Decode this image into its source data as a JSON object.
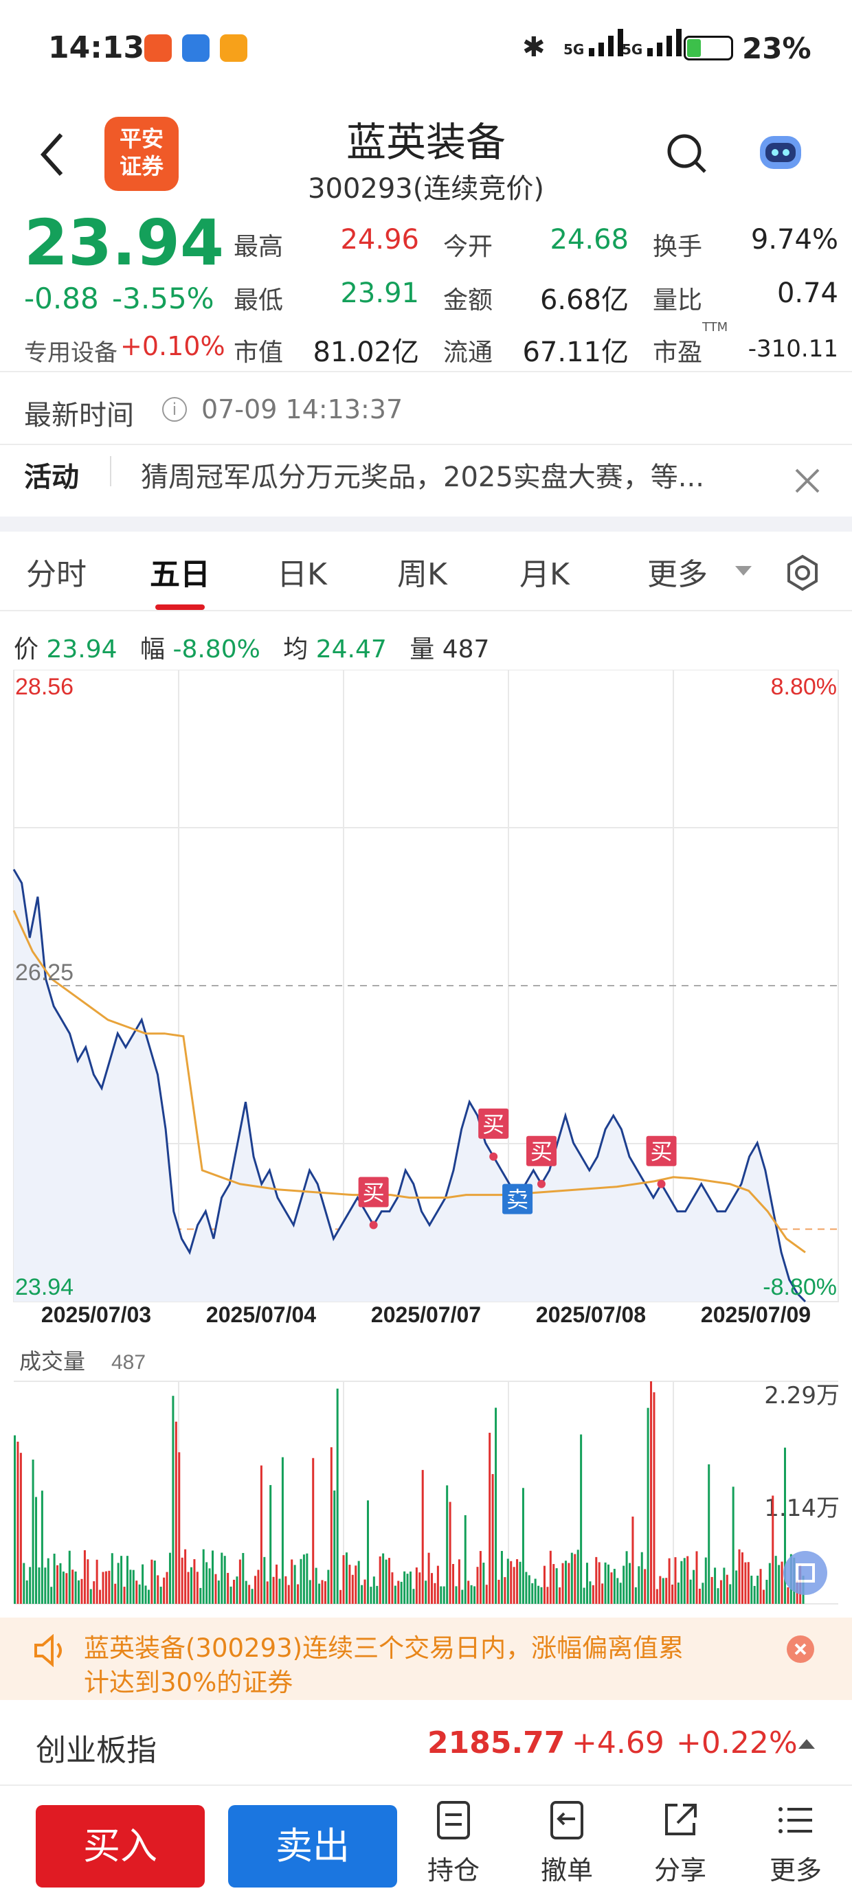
{
  "status_bar": {
    "time": "14:13",
    "signal_1": "5G",
    "signal_2": "5G",
    "battery": "23%",
    "app_icons": [
      "pingan-app-icon",
      "chart-app-icon",
      "orange-app-icon"
    ]
  },
  "header": {
    "logo_text_1": "平安",
    "logo_text_2": "证券",
    "stock_name": "蓝英装备",
    "stock_code": "300293(连续竞价)"
  },
  "quote": {
    "price": "23.94",
    "change": "-0.88",
    "change_pct": "-3.55%",
    "sector": "专用设备",
    "sector_change": "+0.10%",
    "fields": [
      {
        "label": "最高",
        "value": "24.96",
        "tone": "red"
      },
      {
        "label": "今开",
        "value": "24.68",
        "tone": "green"
      },
      {
        "label": "换手",
        "value": "9.74%",
        "tone": "dark"
      },
      {
        "label": "最低",
        "value": "23.91",
        "tone": "green"
      },
      {
        "label": "金额",
        "value": "6.68亿",
        "tone": "dark"
      },
      {
        "label": "量比",
        "value": "0.74",
        "tone": "dark"
      },
      {
        "label": "市值",
        "value": "81.02亿",
        "tone": "dark"
      },
      {
        "label": "流通",
        "value": "67.11亿",
        "tone": "dark"
      },
      {
        "label": "市盈",
        "value": "-310.11",
        "tone": "dark"
      }
    ],
    "ttm": "TTM"
  },
  "latest_time": {
    "label": "最新时间",
    "value": "07-09 14:13:37"
  },
  "activity": {
    "label": "活动",
    "text": "猜周冠军瓜分万元奖品，2025实盘大赛，等..."
  },
  "tabs": {
    "items": [
      "分时",
      "五日",
      "日K",
      "周K",
      "月K",
      "更多"
    ],
    "active": "五日"
  },
  "chart_info": {
    "price_label": "价",
    "price": "23.94",
    "range_label": "幅",
    "range": "-8.80%",
    "avg_label": "均",
    "avg": "24.47",
    "vol_label": "量",
    "vol": "487"
  },
  "chart_data": [
    {
      "type": "line",
      "title": "",
      "days": [
        "2025/07/03",
        "2025/07/04",
        "2025/07/07",
        "2025/07/08",
        "2025/07/09"
      ],
      "y_labels": {
        "top": "28.56",
        "mid": "26.25",
        "bottom": "23.94",
        "top_pct": "8.80%",
        "bottom_pct": "-8.80%"
      },
      "ylim": [
        23.94,
        28.56
      ],
      "prev_close": 26.25,
      "series": [
        {
          "name": "",
          "color": "#1d3f8f",
          "values": [
            27.1,
            27.0,
            26.6,
            26.9,
            26.3,
            26.1,
            26.0,
            25.9,
            25.7,
            25.8,
            25.6,
            25.5,
            25.7,
            25.9,
            25.8,
            25.9,
            26.0,
            25.8,
            25.6,
            25.2,
            24.6,
            24.4,
            24.3,
            24.5,
            24.6,
            24.4,
            24.7,
            24.8,
            25.1,
            25.4,
            25.0,
            24.8,
            24.9,
            24.7,
            24.6,
            24.5,
            24.7,
            24.9,
            24.8,
            24.6,
            24.4,
            24.5,
            24.6,
            24.7,
            24.6,
            24.5,
            24.6,
            24.6,
            24.7,
            24.9,
            24.8,
            24.6,
            24.5,
            24.6,
            24.7,
            24.9,
            25.2,
            25.4,
            25.3,
            25.1,
            25.0,
            24.9,
            24.8,
            24.7,
            24.8,
            24.9,
            24.8,
            24.9,
            25.1,
            25.3,
            25.1,
            25.0,
            24.9,
            25.0,
            25.2,
            25.3,
            25.2,
            25.0,
            24.9,
            24.8,
            24.7,
            24.8,
            24.7,
            24.6,
            24.6,
            24.7,
            24.8,
            24.7,
            24.6,
            24.6,
            24.7,
            24.8,
            25.0,
            25.1,
            24.9,
            24.6,
            24.3,
            24.1,
            24.0,
            23.94
          ]
        },
        {
          "name": "",
          "color": "#e8a33a",
          "values": [
            26.8,
            26.5,
            26.3,
            26.2,
            26.1,
            26.0,
            25.95,
            25.9,
            25.9,
            25.88,
            24.9,
            24.85,
            24.8,
            24.78,
            24.76,
            24.75,
            24.74,
            24.73,
            24.72,
            24.72,
            24.72,
            24.7,
            24.7,
            24.7,
            24.72,
            24.72,
            24.72,
            24.73,
            24.74,
            24.75,
            24.76,
            24.77,
            24.78,
            24.8,
            24.82,
            24.85,
            24.84,
            24.82,
            24.8,
            24.75,
            24.6,
            24.4,
            24.3
          ]
        }
      ],
      "markers": [
        {
          "text": "买",
          "type": "buy"
        },
        {
          "text": "买",
          "type": "buy"
        },
        {
          "text": "卖",
          "type": "sell"
        },
        {
          "text": "买",
          "type": "buy"
        },
        {
          "text": "买",
          "type": "buy"
        }
      ]
    },
    {
      "type": "bar",
      "title": "成交量",
      "value_label": "487",
      "y_labels": [
        "2.29万",
        "1.14万"
      ],
      "ylim": [
        0,
        22900
      ],
      "colors": {
        "up": "#e0312f",
        "down": "#14a05a"
      }
    }
  ],
  "alert": {
    "text_line1": "蓝英装备(300293)连续三个交易日内，涨幅偏离值累",
    "text_line2": "计达到30%的证券"
  },
  "index": {
    "name": "创业板指",
    "value": "2185.77",
    "change": "+4.69",
    "change_pct": "+0.22%"
  },
  "bottom_bar": {
    "buy": "买入",
    "sell": "卖出",
    "tools": [
      "持仓",
      "撤单",
      "分享",
      "更多"
    ]
  },
  "colors": {
    "red": "#e0312f",
    "green": "#14a05a",
    "blue_button": "#1b76e0",
    "buy_button": "#e01b23",
    "line_price": "#1d3f8f",
    "line_avg": "#e8a33a"
  }
}
